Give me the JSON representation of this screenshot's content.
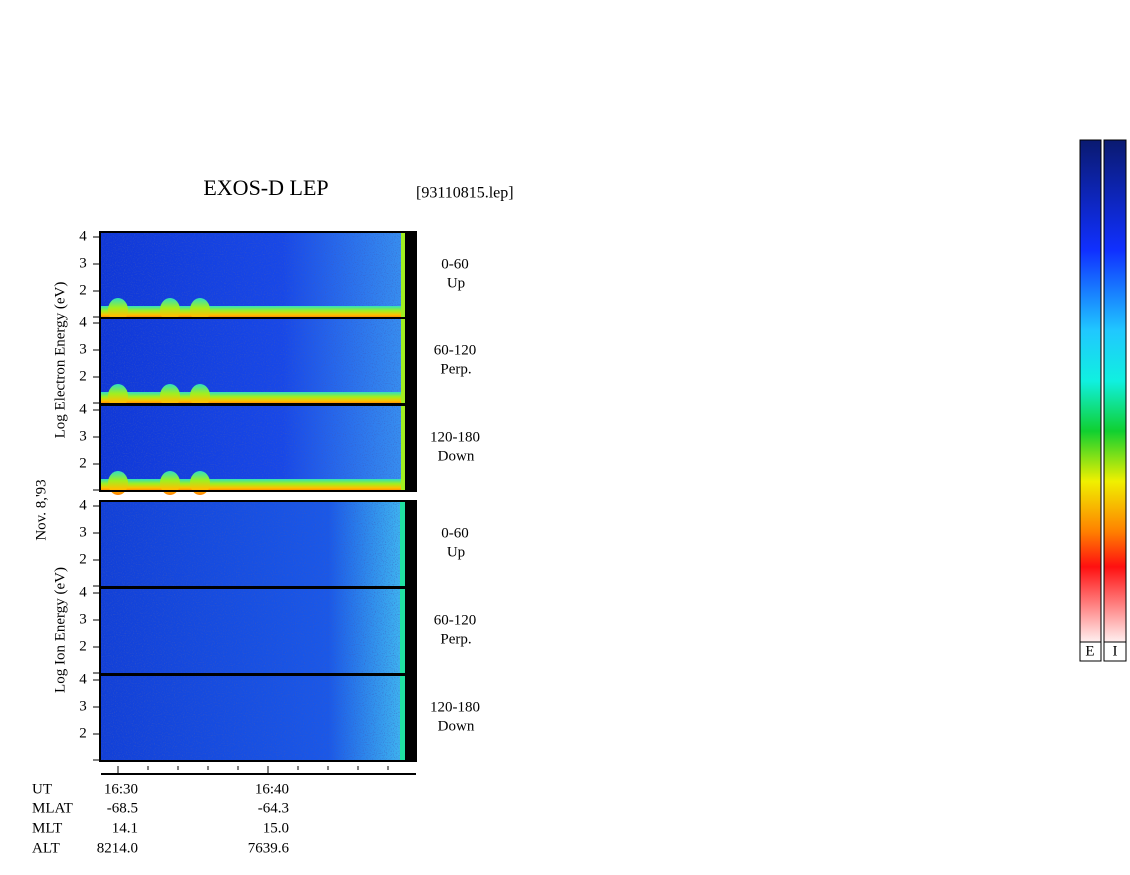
{
  "title": "EXOS-D LEP",
  "file": "[93110815.lep]",
  "date": "Nov. 8,'93",
  "yticks": [
    2,
    3,
    4
  ],
  "groups": [
    {
      "label": "Log Electron Energy (eV)",
      "panels": [
        {
          "angle": "0-60",
          "direction": "Up"
        },
        {
          "angle": "60-120",
          "direction": "Perp."
        },
        {
          "angle": "120-180",
          "direction": "Down"
        }
      ]
    },
    {
      "label": "Log Ion Energy (eV)",
      "panels": [
        {
          "angle": "0-60",
          "direction": "Up"
        },
        {
          "angle": "60-120",
          "direction": "Perp."
        },
        {
          "angle": "120-180",
          "direction": "Down"
        }
      ]
    }
  ],
  "rows": [
    {
      "label": "UT",
      "values": [
        "16:30",
        "16:40"
      ]
    },
    {
      "label": "MLAT",
      "values": [
        "-68.5",
        "-64.3"
      ]
    },
    {
      "label": "MLT",
      "values": [
        "14.1",
        "15.0"
      ]
    },
    {
      "label": "ALT",
      "values": [
        "8214.0",
        "7639.6"
      ]
    }
  ],
  "colorbars": [
    "E",
    "I"
  ]
}
